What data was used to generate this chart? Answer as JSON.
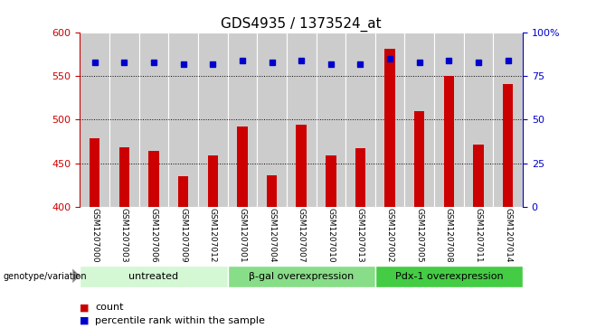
{
  "title": "GDS4935 / 1373524_at",
  "samples": [
    "GSM1207000",
    "GSM1207003",
    "GSM1207006",
    "GSM1207009",
    "GSM1207012",
    "GSM1207001",
    "GSM1207004",
    "GSM1207007",
    "GSM1207010",
    "GSM1207013",
    "GSM1207002",
    "GSM1207005",
    "GSM1207008",
    "GSM1207011",
    "GSM1207014"
  ],
  "counts": [
    479,
    468,
    464,
    435,
    459,
    492,
    436,
    494,
    459,
    467,
    582,
    510,
    550,
    471,
    541
  ],
  "percentile_ranks": [
    83,
    83,
    83,
    82,
    82,
    84,
    83,
    84,
    82,
    82,
    85,
    83,
    84,
    83,
    84
  ],
  "groups": [
    {
      "label": "untreated",
      "start": 0,
      "end": 5,
      "color": "#d4f7d4"
    },
    {
      "label": "β-gal overexpression",
      "start": 5,
      "end": 10,
      "color": "#88dd88"
    },
    {
      "label": "Pdx-1 overexpression",
      "start": 10,
      "end": 15,
      "color": "#44cc44"
    }
  ],
  "bar_color": "#cc0000",
  "dot_color": "#0000cc",
  "ylim_left": [
    400,
    600
  ],
  "ylim_right": [
    0,
    100
  ],
  "yticks_left": [
    400,
    450,
    500,
    550,
    600
  ],
  "yticks_right": [
    0,
    25,
    50,
    75,
    100
  ],
  "grid_values": [
    450,
    500,
    550
  ],
  "background_color": "#ffffff",
  "label_bg_color": "#cccccc",
  "title_fontsize": 11,
  "tick_fontsize": 8,
  "legend_fontsize": 8,
  "bar_width": 0.35
}
